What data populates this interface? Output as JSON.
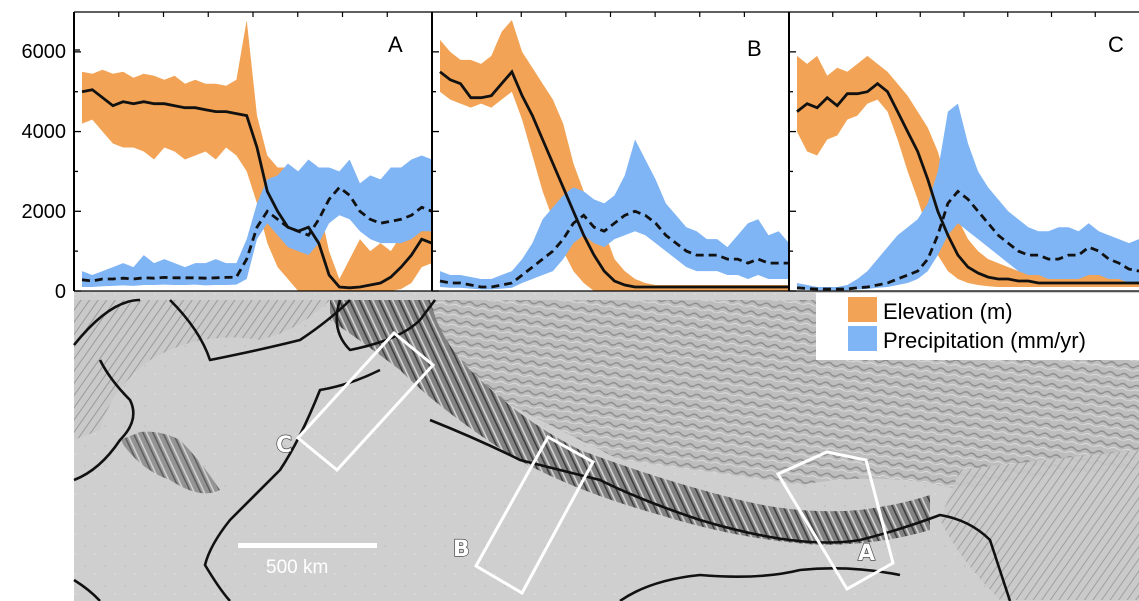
{
  "chart_data": {
    "type": "area",
    "y_axis": {
      "ticks": [
        0,
        2000,
        4000,
        6000
      ],
      "ylim": [
        0,
        7000
      ]
    },
    "legend": {
      "placement": "bottom-right",
      "entries": [
        {
          "label": "Elevation (m)",
          "color": "#f2a355"
        },
        {
          "label": "Precipitation (mm/yr)",
          "color": "#7fb4f5"
        }
      ]
    },
    "panels": [
      {
        "label": "A",
        "elevation_mean": [
          5000,
          5050,
          4850,
          4650,
          4750,
          4700,
          4750,
          4700,
          4700,
          4650,
          4600,
          4600,
          4550,
          4500,
          4500,
          4450,
          4400,
          3600,
          2500,
          2000,
          1600,
          1500,
          1600,
          1200,
          400,
          100,
          80,
          100,
          150,
          200,
          350,
          600,
          900,
          1300,
          1200
        ],
        "elevation_min": [
          4200,
          4300,
          4000,
          3700,
          3600,
          3600,
          3500,
          3300,
          3600,
          3500,
          3300,
          3400,
          3500,
          3300,
          3600,
          3400,
          3000,
          2200,
          1200,
          600,
          300,
          0,
          0,
          0,
          0,
          0,
          0,
          0,
          0,
          0,
          0,
          50,
          200,
          600,
          700
        ],
        "elevation_max": [
          5500,
          5450,
          5550,
          5450,
          5500,
          5350,
          5450,
          5400,
          5300,
          5400,
          5200,
          5300,
          5200,
          5200,
          5150,
          5300,
          6800,
          4400,
          3400,
          3100,
          3100,
          2500,
          2400,
          2200,
          1000,
          300,
          800,
          1300,
          1000,
          1200,
          1000,
          1400,
          1700,
          1900,
          1700
        ],
        "precip_mean": [
          280,
          250,
          300,
          300,
          320,
          300,
          330,
          320,
          340,
          330,
          330,
          330,
          320,
          330,
          340,
          350,
          800,
          1600,
          2000,
          1800,
          1600,
          1500,
          1400,
          1800,
          2300,
          2600,
          2400,
          2000,
          1800,
          1700,
          1750,
          1800,
          1900,
          2100,
          2000
        ],
        "precip_min": [
          100,
          100,
          120,
          130,
          140,
          130,
          150,
          150,
          160,
          150,
          150,
          160,
          140,
          150,
          150,
          160,
          300,
          1300,
          1700,
          1400,
          1100,
          1000,
          900,
          1200,
          1700,
          1900,
          1800,
          1500,
          1300,
          1200,
          1200,
          1200,
          1300,
          1500,
          1500
        ],
        "precip_max": [
          500,
          400,
          500,
          600,
          700,
          600,
          900,
          700,
          800,
          700,
          600,
          700,
          700,
          800,
          700,
          700,
          1300,
          2200,
          2800,
          2900,
          3200,
          3000,
          3300,
          3100,
          3100,
          3000,
          3300,
          2700,
          2900,
          2800,
          3100,
          3100,
          3300,
          3400,
          3300
        ]
      },
      {
        "label": "B",
        "elevation_mean": [
          5500,
          5300,
          5200,
          4850,
          4850,
          4900,
          5200,
          5500,
          4900,
          4400,
          3800,
          3200,
          2600,
          2000,
          1400,
          900,
          500,
          250,
          150,
          100,
          100,
          100,
          100,
          100,
          100,
          100,
          100,
          100,
          100,
          100,
          100,
          100,
          100,
          100,
          100
        ],
        "elevation_min": [
          5000,
          4800,
          4700,
          4600,
          4700,
          4600,
          4800,
          5000,
          4300,
          3400,
          2500,
          1800,
          1000,
          500,
          200,
          0,
          0,
          0,
          0,
          0,
          0,
          0,
          0,
          0,
          0,
          0,
          0,
          0,
          0,
          0,
          0,
          0,
          0,
          0,
          0
        ],
        "elevation_max": [
          6300,
          6000,
          5800,
          5800,
          5700,
          5900,
          6500,
          6800,
          6000,
          5600,
          5200,
          4800,
          4200,
          3200,
          2500,
          2200,
          1500,
          800,
          500,
          300,
          200,
          150,
          150,
          150,
          150,
          150,
          150,
          150,
          150,
          150,
          150,
          150,
          150,
          150,
          150
        ],
        "precip_mean": [
          250,
          200,
          200,
          150,
          100,
          100,
          150,
          200,
          400,
          600,
          800,
          1000,
          1300,
          1700,
          1900,
          1600,
          1500,
          1700,
          1900,
          2000,
          1900,
          1700,
          1400,
          1200,
          1000,
          900,
          900,
          900,
          800,
          800,
          700,
          800,
          700,
          700,
          700
        ],
        "precip_min": [
          100,
          80,
          80,
          60,
          40,
          40,
          60,
          80,
          200,
          300,
          400,
          500,
          800,
          1200,
          1400,
          1200,
          1100,
          1300,
          1400,
          1500,
          1400,
          1200,
          1000,
          800,
          600,
          500,
          500,
          500,
          400,
          400,
          300,
          400,
          300,
          300,
          300
        ],
        "precip_max": [
          500,
          400,
          400,
          350,
          300,
          300,
          400,
          500,
          800,
          1200,
          1800,
          2100,
          2400,
          2600,
          2500,
          2300,
          2200,
          2400,
          2900,
          3800,
          3300,
          2800,
          2200,
          1900,
          1600,
          1500,
          1300,
          1300,
          1100,
          1400,
          1700,
          1800,
          1400,
          1500,
          1200
        ]
      },
      {
        "label": "C",
        "elevation_mean": [
          4500,
          4700,
          4600,
          4850,
          4650,
          4950,
          4950,
          5000,
          5200,
          5000,
          4500,
          4000,
          3500,
          2800,
          2000,
          1400,
          900,
          600,
          450,
          350,
          300,
          300,
          250,
          250,
          200,
          200,
          200,
          200,
          200,
          200,
          200,
          200,
          200,
          200,
          200
        ],
        "elevation_min": [
          4000,
          3500,
          3400,
          3800,
          3900,
          4300,
          4400,
          4700,
          4800,
          4500,
          3800,
          3000,
          2300,
          1500,
          900,
          500,
          300,
          200,
          150,
          120,
          100,
          100,
          100,
          100,
          100,
          100,
          100,
          100,
          100,
          100,
          100,
          100,
          100,
          100,
          100
        ],
        "elevation_max": [
          5900,
          5700,
          5900,
          5400,
          5600,
          5500,
          5700,
          5900,
          5700,
          5500,
          5200,
          4900,
          4500,
          4100,
          3500,
          2600,
          1800,
          1300,
          1000,
          800,
          700,
          600,
          500,
          500,
          400,
          400,
          400,
          400,
          400,
          400,
          400,
          400,
          400,
          400,
          400
        ],
        "precip_mean": [
          80,
          60,
          50,
          50,
          50,
          50,
          80,
          100,
          150,
          200,
          300,
          400,
          500,
          800,
          1400,
          2200,
          2500,
          2300,
          2000,
          1700,
          1400,
          1200,
          1000,
          900,
          900,
          800,
          800,
          900,
          900,
          1100,
          1000,
          800,
          700,
          550,
          500
        ],
        "precip_min": [
          40,
          30,
          20,
          20,
          20,
          20,
          40,
          50,
          80,
          100,
          150,
          200,
          300,
          500,
          900,
          1400,
          1700,
          1500,
          1300,
          1100,
          900,
          700,
          500,
          400,
          400,
          300,
          300,
          300,
          300,
          400,
          400,
          300,
          300,
          200,
          200
        ],
        "precip_max": [
          200,
          150,
          100,
          100,
          100,
          150,
          300,
          500,
          800,
          1100,
          1400,
          1600,
          1800,
          2200,
          3000,
          4500,
          4700,
          3700,
          3000,
          2600,
          2300,
          2000,
          1800,
          1600,
          1500,
          1500,
          1600,
          1600,
          1500,
          1700,
          1500,
          1400,
          1300,
          1200,
          1300
        ]
      }
    ]
  },
  "map": {
    "scale_bar_label": "500 km",
    "box_labels": [
      "C",
      "B",
      "A"
    ],
    "colors": {
      "box": "#ffffff",
      "border": "#111111",
      "terrain_base": "#c8c8c8"
    }
  }
}
